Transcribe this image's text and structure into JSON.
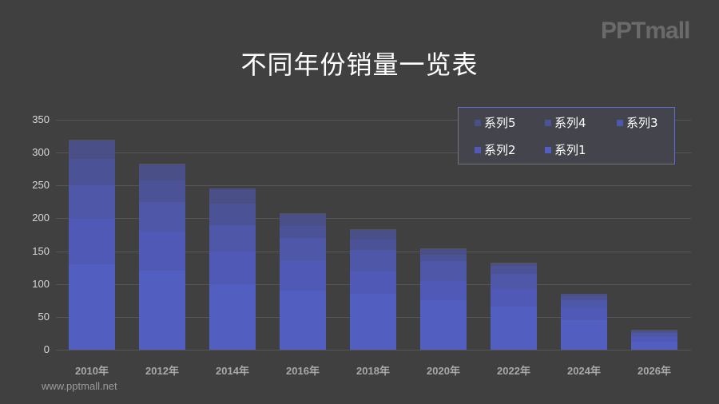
{
  "logo": "PPTmall",
  "footer": "www.pptmall.net",
  "colors": {
    "background": "#404040",
    "series1": "#535fc0",
    "series2": "#5059b5",
    "series3": "#4e57a8",
    "series4": "#4b5296",
    "series5": "#4a5087"
  },
  "chart_data": {
    "type": "bar",
    "stacked": true,
    "title": "不同年份销量一览表",
    "xlabel": "",
    "ylabel": "",
    "ylim": [
      0,
      350
    ],
    "yticks": [
      "0",
      "50",
      "100",
      "150",
      "200",
      "250",
      "300",
      "350"
    ],
    "grid": true,
    "legend_position": "top-right",
    "categories": [
      "2010年",
      "2012年",
      "2014年",
      "2016年",
      "2018年",
      "2020年",
      "2022年",
      "2024年",
      "2026年"
    ],
    "series": [
      {
        "name": "系列1",
        "values": [
          130,
          120,
          100,
          90,
          85,
          75,
          66,
          45,
          12
        ]
      },
      {
        "name": "系列2",
        "values": [
          70,
          60,
          50,
          45,
          34,
          30,
          27,
          18,
          8
        ]
      },
      {
        "name": "系列3",
        "values": [
          50,
          45,
          40,
          35,
          33,
          30,
          22,
          12,
          5
        ]
      },
      {
        "name": "系列4",
        "values": [
          40,
          33,
          32,
          18,
          16,
          10,
          13,
          6,
          3
        ]
      },
      {
        "name": "系列5",
        "values": [
          30,
          25,
          23,
          20,
          15,
          10,
          5,
          4,
          2
        ]
      }
    ],
    "legend": [
      "系列5",
      "系列4",
      "系列3",
      "系列2",
      "系列1"
    ]
  }
}
